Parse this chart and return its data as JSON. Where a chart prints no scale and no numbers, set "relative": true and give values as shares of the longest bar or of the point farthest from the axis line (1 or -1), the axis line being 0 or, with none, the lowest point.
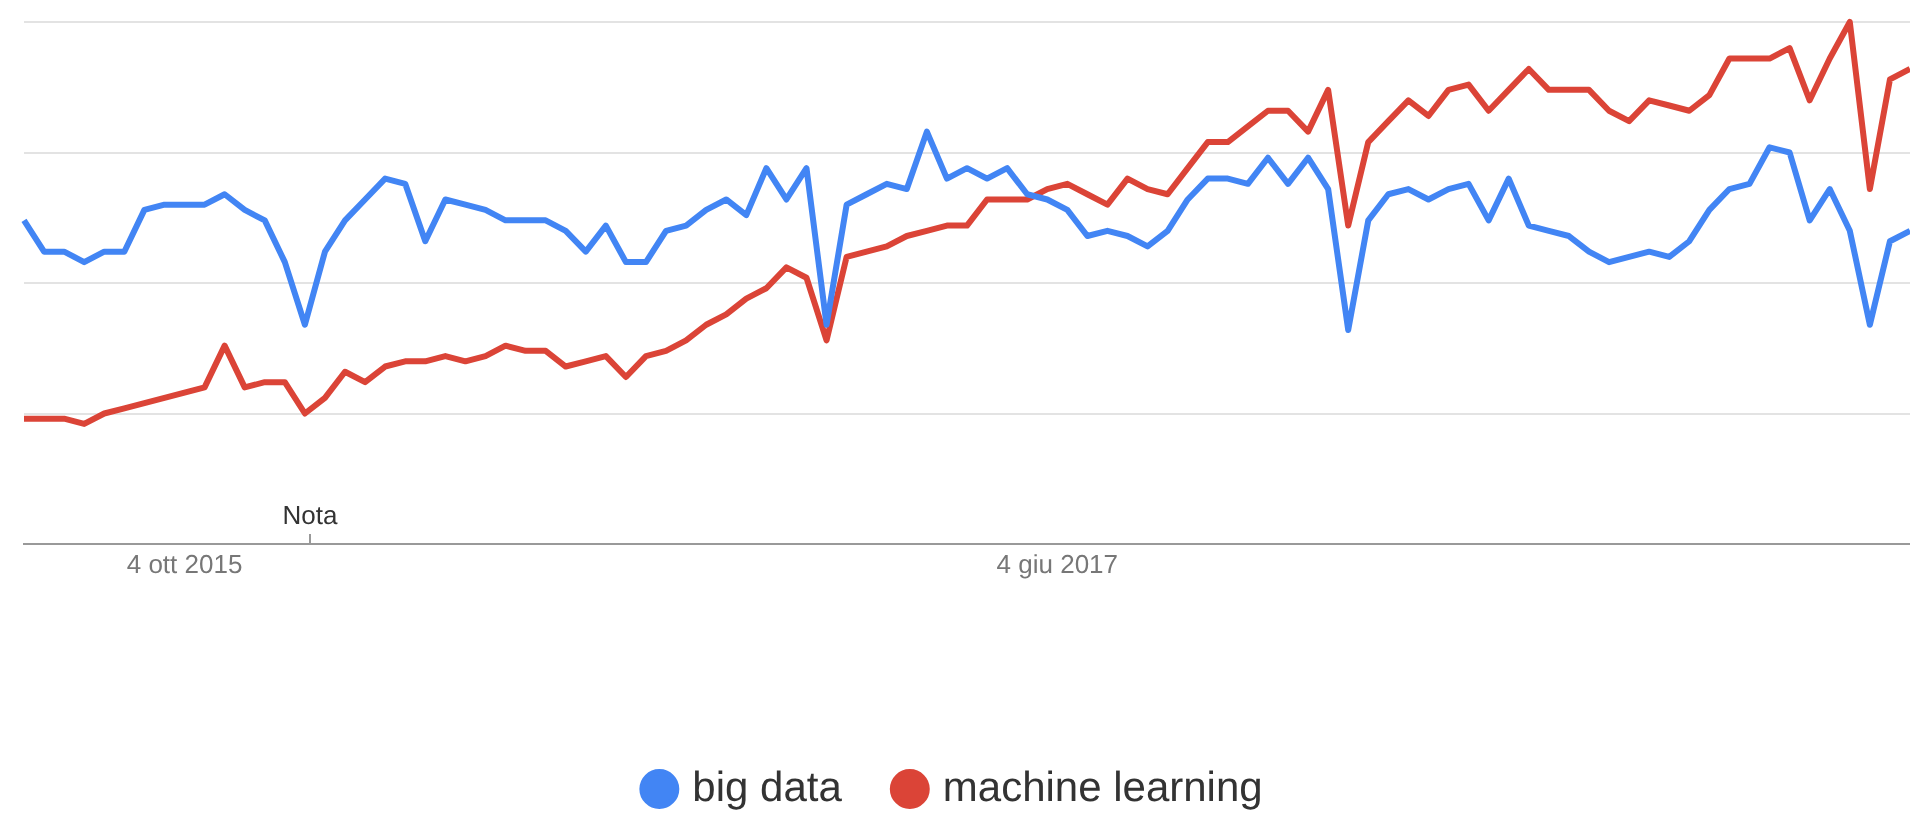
{
  "chart_data": {
    "type": "line",
    "relative": true,
    "grid": "y",
    "legend": "bottom",
    "marker": "none",
    "line_style": "solid",
    "x": [
      "2015-06-14",
      "2015-06-28",
      "2015-07-12",
      "2015-07-26",
      "2015-08-09",
      "2015-08-23",
      "2015-09-06",
      "2015-09-20",
      "2015-10-04",
      "2015-10-18",
      "2015-11-01",
      "2015-11-15",
      "2015-11-29",
      "2015-12-13",
      "2015-12-27",
      "2016-01-10",
      "2016-01-24",
      "2016-02-07",
      "2016-02-21",
      "2016-03-06",
      "2016-03-20",
      "2016-04-03",
      "2016-04-17",
      "2016-05-01",
      "2016-05-15",
      "2016-05-29",
      "2016-06-12",
      "2016-06-26",
      "2016-07-10",
      "2016-07-24",
      "2016-08-07",
      "2016-08-21",
      "2016-09-04",
      "2016-09-18",
      "2016-10-02",
      "2016-10-16",
      "2016-10-30",
      "2016-11-13",
      "2016-11-27",
      "2016-12-11",
      "2016-12-25",
      "2017-01-08",
      "2017-01-22",
      "2017-02-05",
      "2017-02-19",
      "2017-03-05",
      "2017-03-19",
      "2017-04-02",
      "2017-04-16",
      "2017-04-30",
      "2017-05-14",
      "2017-05-28",
      "2017-06-11",
      "2017-06-25",
      "2017-07-09",
      "2017-07-23",
      "2017-08-06",
      "2017-08-20",
      "2017-09-03",
      "2017-09-17",
      "2017-10-01",
      "2017-10-15",
      "2017-10-29",
      "2017-11-12",
      "2017-11-26",
      "2017-12-10",
      "2017-12-24",
      "2018-01-07",
      "2018-01-21",
      "2018-02-04",
      "2018-02-18",
      "2018-03-04",
      "2018-03-18",
      "2018-04-01",
      "2018-04-15",
      "2018-04-29",
      "2018-05-13",
      "2018-05-27",
      "2018-06-10",
      "2018-06-24",
      "2018-07-08",
      "2018-07-22",
      "2018-08-05",
      "2018-08-19",
      "2018-09-02",
      "2018-09-16",
      "2018-09-30",
      "2018-10-14",
      "2018-10-28",
      "2018-11-11",
      "2018-11-25",
      "2018-12-09",
      "2018-12-23",
      "2019-01-06",
      "2019-01-20"
    ],
    "xlim": [
      "2015-06-14",
      "2019-01-20"
    ],
    "xticks": [
      {
        "value": "2015-10-04",
        "label": "4 ott 2015"
      },
      {
        "value": "2017-06-04",
        "label": "4 giu 2017"
      }
    ],
    "annotations": [
      "Nota"
    ],
    "series": [
      {
        "name": "big data",
        "color": "#4285f4",
        "values": [
          0.62,
          0.56,
          0.56,
          0.54,
          0.56,
          0.56,
          0.64,
          0.65,
          0.65,
          0.65,
          0.67,
          0.64,
          0.62,
          0.54,
          0.42,
          0.56,
          0.62,
          0.66,
          0.7,
          0.69,
          0.58,
          0.66,
          0.65,
          0.64,
          0.62,
          0.62,
          0.62,
          0.6,
          0.56,
          0.61,
          0.54,
          0.54,
          0.6,
          0.61,
          0.64,
          0.66,
          0.63,
          0.72,
          0.66,
          0.72,
          0.42,
          0.65,
          0.67,
          0.69,
          0.68,
          0.79,
          0.7,
          0.72,
          0.7,
          0.72,
          0.67,
          0.66,
          0.64,
          0.59,
          0.6,
          0.59,
          0.57,
          0.6,
          0.66,
          0.7,
          0.7,
          0.69,
          0.74,
          0.69,
          0.74,
          0.68,
          0.41,
          0.62,
          0.67,
          0.68,
          0.66,
          0.68,
          0.69,
          0.62,
          0.7,
          0.61,
          0.6,
          0.59,
          0.56,
          0.54,
          0.55,
          0.56,
          0.55,
          0.58,
          0.64,
          0.68,
          0.69,
          0.76,
          0.75,
          0.62,
          0.68,
          0.6,
          0.42,
          0.58,
          0.6
        ]
      },
      {
        "name": "machine learning",
        "color": "#db4437",
        "values": [
          0.24,
          0.24,
          0.24,
          0.23,
          0.25,
          0.26,
          0.27,
          0.28,
          0.29,
          0.3,
          0.38,
          0.3,
          0.31,
          0.31,
          0.25,
          0.28,
          0.33,
          0.31,
          0.34,
          0.35,
          0.35,
          0.36,
          0.35,
          0.36,
          0.38,
          0.37,
          0.37,
          0.34,
          0.35,
          0.36,
          0.32,
          0.36,
          0.37,
          0.39,
          0.42,
          0.44,
          0.47,
          0.49,
          0.53,
          0.51,
          0.39,
          0.55,
          0.56,
          0.57,
          0.59,
          0.6,
          0.61,
          0.61,
          0.66,
          0.66,
          0.66,
          0.68,
          0.69,
          0.67,
          0.65,
          0.7,
          0.68,
          0.67,
          0.72,
          0.77,
          0.77,
          0.8,
          0.83,
          0.83,
          0.79,
          0.87,
          0.61,
          0.77,
          0.81,
          0.85,
          0.82,
          0.87,
          0.88,
          0.83,
          0.87,
          0.91,
          0.87,
          0.87,
          0.87,
          0.83,
          0.81,
          0.85,
          0.84,
          0.83,
          0.86,
          0.93,
          0.93,
          0.93,
          0.95,
          0.85,
          0.93,
          1,
          0.68,
          0.89,
          0.91
        ]
      }
    ]
  }
}
